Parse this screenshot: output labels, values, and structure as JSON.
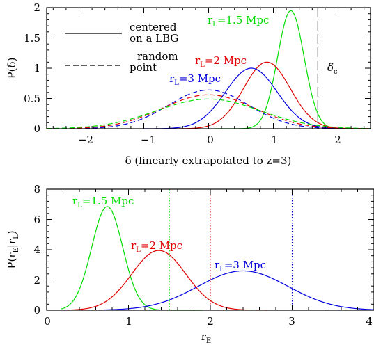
{
  "colors": {
    "green": "#00dd00",
    "red": "#e00000",
    "blue": "#0000dd",
    "black": "#000000"
  },
  "chart_data": [
    {
      "type": "line",
      "xlabel": "δ (linearly extrapolated to z=3)",
      "ylabel": "P(δ)",
      "xlim": [
        -2.5,
        2.5
      ],
      "ylim": [
        0,
        2
      ],
      "xticks": [
        "−2",
        "−1",
        "0",
        "1",
        "2"
      ],
      "yticks": [
        "0",
        "0.5",
        "1",
        "1.5",
        "2"
      ],
      "legend": {
        "solid": "centered on a LBG",
        "dashed": "random point"
      },
      "legend_lines": [
        "centered",
        "on a LBG",
        "random",
        "point"
      ],
      "critical_line": {
        "x": 1.686,
        "label": "δ",
        "label_sub": "c"
      },
      "labels": [
        {
          "text": "1.5 Mpc",
          "color": "green"
        },
        {
          "text": "2 Mpc",
          "color": "red"
        },
        {
          "text": "3 Mpc",
          "color": "blue"
        }
      ],
      "series": [
        {
          "name": "rL=1.5 Mpc, centered on a LBG",
          "color": "green",
          "style": "solid",
          "peak_x": 1.27,
          "peak_y": 1.95,
          "sigma": 0.205,
          "x_start": 0.1,
          "x_end": 2.5
        },
        {
          "name": "rL=2 Mpc, centered on a LBG",
          "color": "red",
          "style": "solid",
          "peak_x": 0.9,
          "peak_y": 1.1,
          "sigma": 0.36,
          "x_start": -0.6,
          "x_end": 2.5
        },
        {
          "name": "rL=3 Mpc, centered on a LBG",
          "color": "blue",
          "style": "solid",
          "peak_x": 0.66,
          "peak_y": 1.0,
          "sigma": 0.4,
          "x_start": -1.0,
          "x_end": 2.5
        },
        {
          "name": "rL=3 Mpc, random point",
          "color": "blue",
          "style": "dashed",
          "peak_x": 0.0,
          "peak_y": 0.64,
          "sigma": 0.62,
          "x_start": -2.5,
          "x_end": 2.5
        },
        {
          "name": "rL=2 Mpc, random point",
          "color": "red",
          "style": "dashed",
          "peak_x": 0.0,
          "peak_y": 0.56,
          "sigma": 0.71,
          "x_start": -2.5,
          "x_end": 2.5
        },
        {
          "name": "rL=1.5 Mpc, random point",
          "color": "green",
          "style": "dashed",
          "peak_x": 0.0,
          "peak_y": 0.49,
          "sigma": 0.8,
          "x_start": -2.5,
          "x_end": 2.5
        }
      ]
    },
    {
      "type": "line",
      "xlabel": "r",
      "xlabel_sub": "E",
      "ylabel": "P(r",
      "ylabel_sub1": "E",
      "ylabel_mid": "|r",
      "ylabel_sub2": "L",
      "ylabel_end": ")",
      "xlim": [
        0,
        4
      ],
      "ylim": [
        0,
        8
      ],
      "xticks": [
        "0",
        "1",
        "2",
        "3",
        "4"
      ],
      "yticks": [
        "0",
        "2",
        "4",
        "6",
        "8"
      ],
      "labels": [
        {
          "text": "1.5 Mpc",
          "color": "green"
        },
        {
          "text": "2 Mpc",
          "color": "red"
        },
        {
          "text": "3 Mpc",
          "color": "blue"
        }
      ],
      "vlines": [
        {
          "x": 1.5,
          "color": "green",
          "style": "dotted"
        },
        {
          "x": 2.0,
          "color": "red",
          "style": "dotted"
        },
        {
          "x": 3.0,
          "color": "blue",
          "style": "dotted"
        }
      ],
      "series": [
        {
          "name": "rL=1.5 Mpc",
          "color": "green",
          "peak_x": 0.74,
          "peak_y": 6.85,
          "sigma": 0.19,
          "x_start": 0.18,
          "x_end": 1.9
        },
        {
          "name": "rL=2 Mpc",
          "color": "red",
          "peak_x": 1.37,
          "peak_y": 3.95,
          "sigma": 0.33,
          "x_start": 0.3,
          "x_end": 2.7
        },
        {
          "name": "rL=3 Mpc",
          "color": "blue",
          "peak_x": 2.4,
          "peak_y": 2.6,
          "sigma": 0.55,
          "x_start": 0.7,
          "x_end": 4.0
        }
      ]
    }
  ]
}
